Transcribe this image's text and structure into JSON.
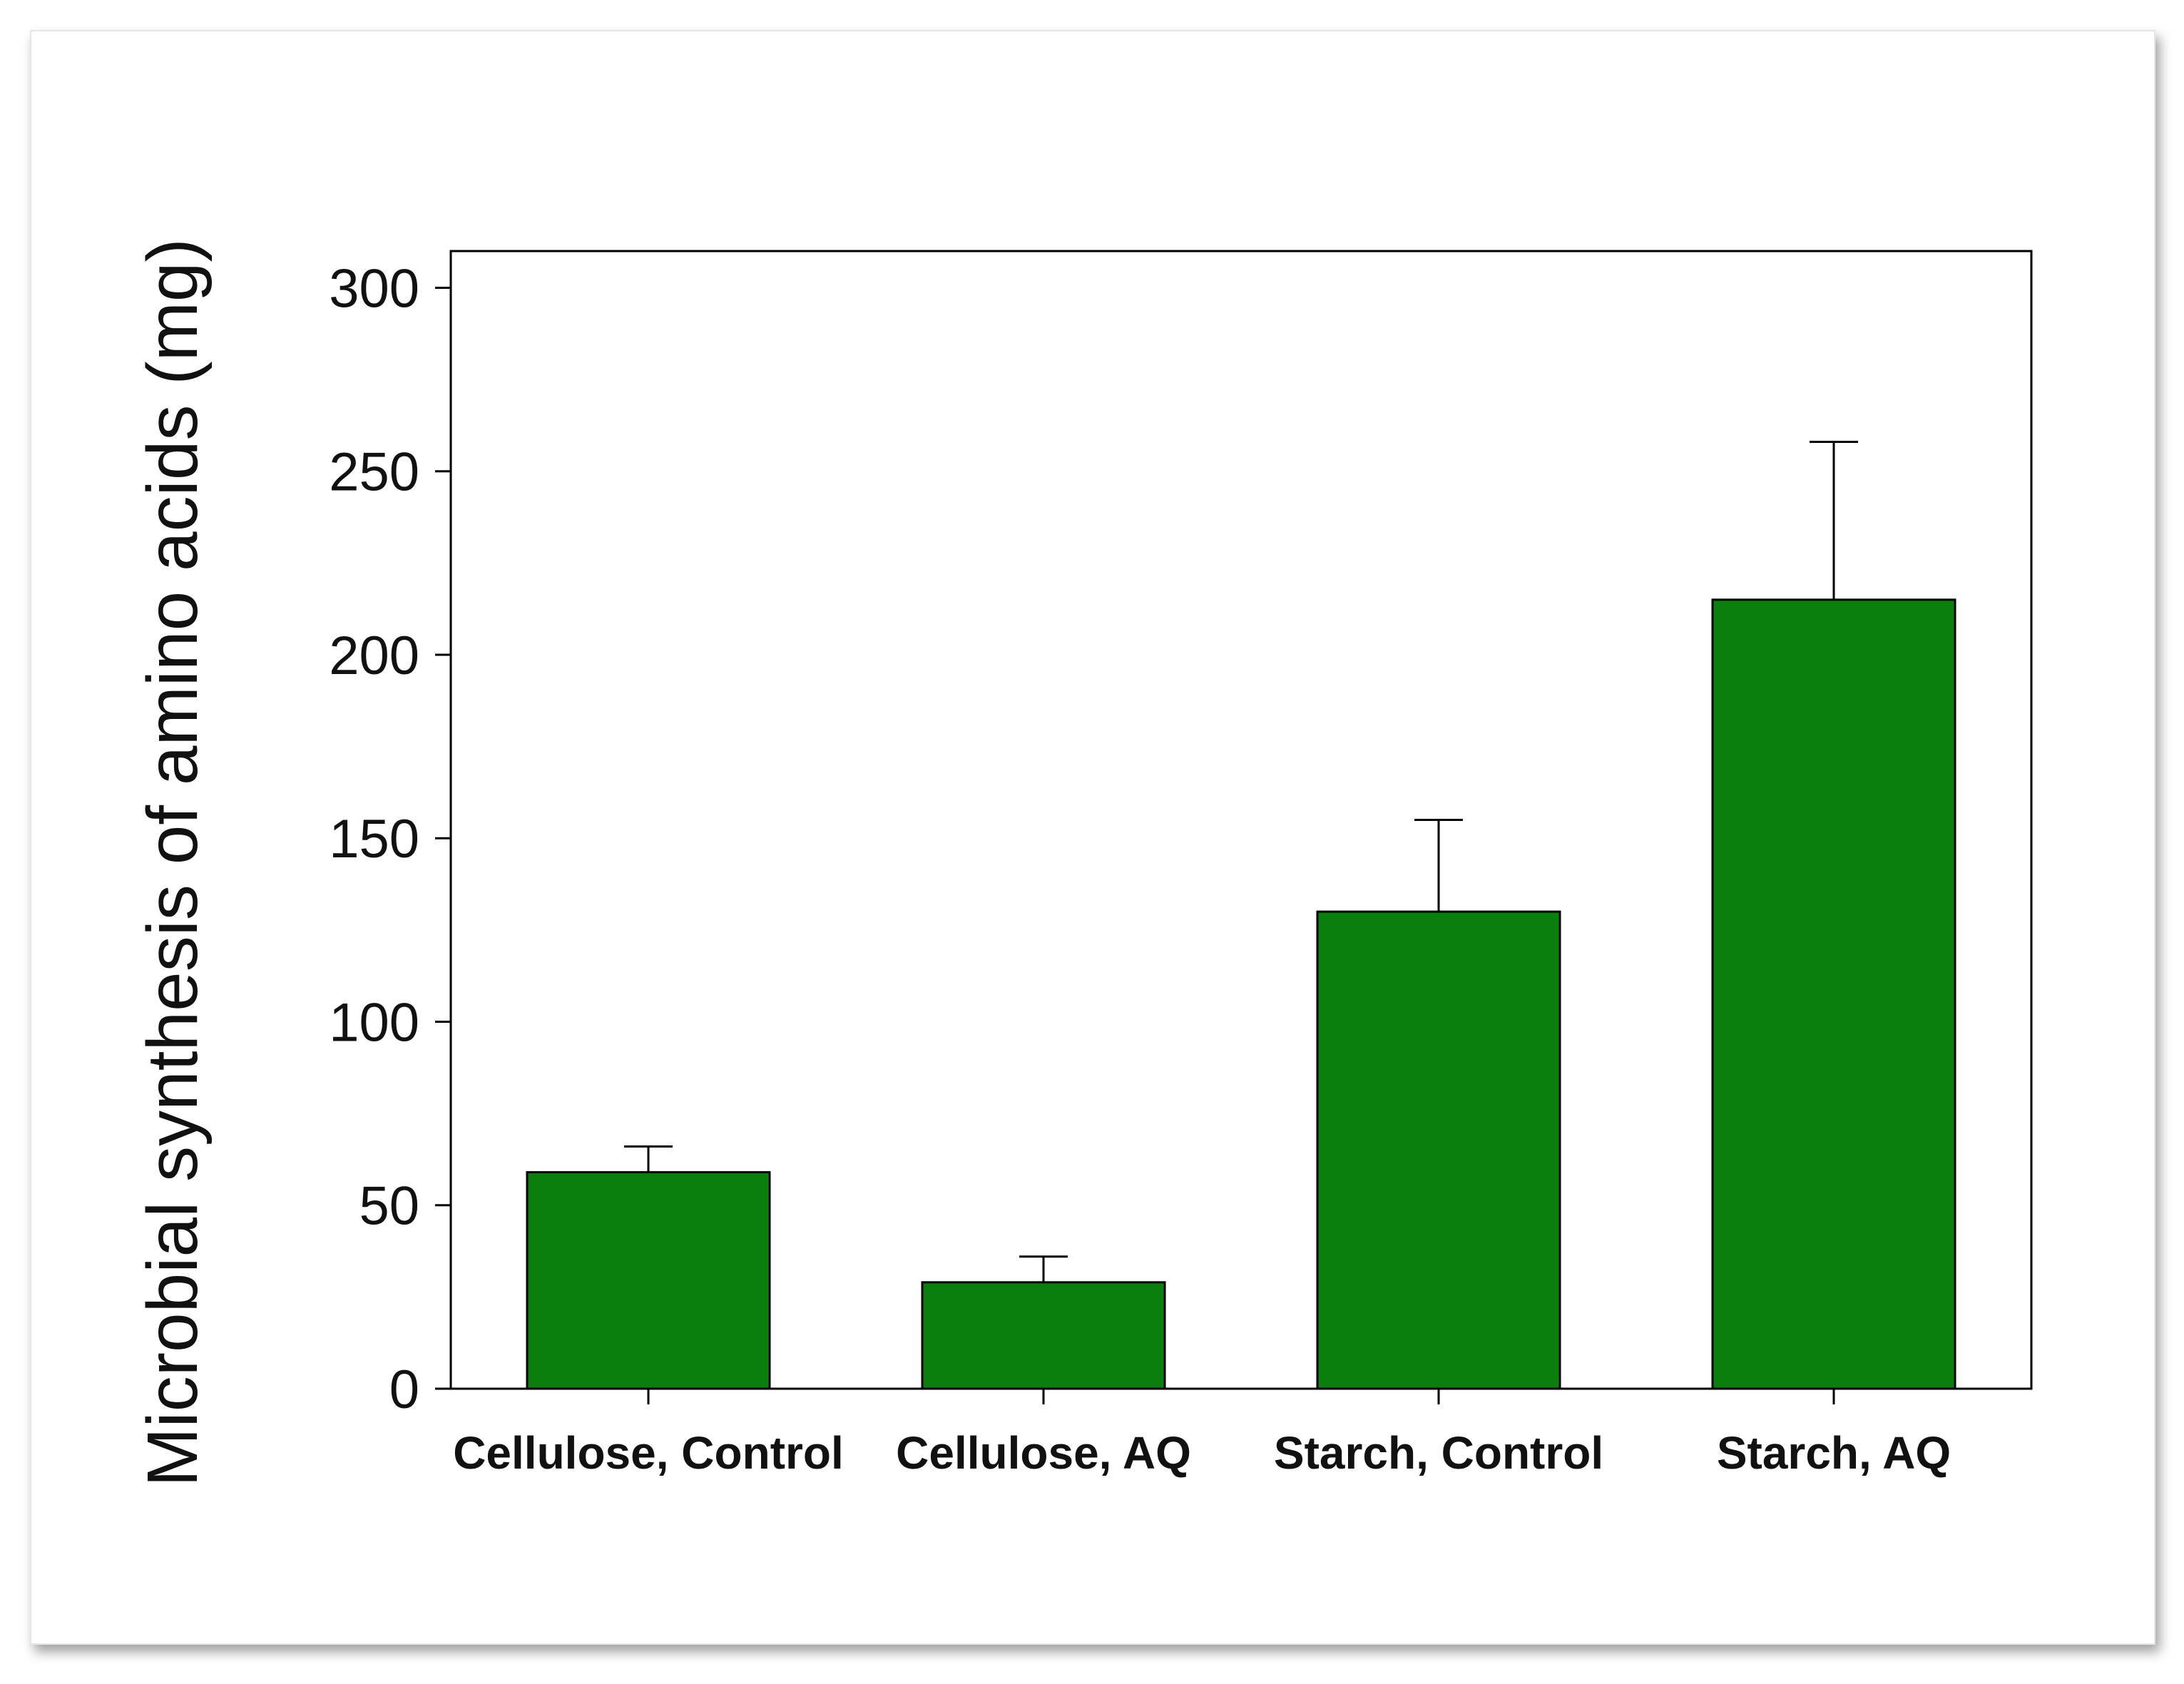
{
  "chart_data": {
    "type": "bar",
    "title": "",
    "xlabel": "",
    "ylabel": "Microbial synthesis of amino acids (mg)",
    "categories": [
      "Cellulose, Control",
      "Cellulose, AQ",
      "Starch, Control",
      "Starch, AQ"
    ],
    "values": [
      59,
      29,
      130,
      215
    ],
    "error_upper": [
      66,
      36,
      155,
      258
    ],
    "ylim": [
      0,
      310
    ],
    "yticks": [
      0,
      50,
      100,
      150,
      200,
      250,
      300
    ],
    "ytick_labels": [
      "0",
      "50",
      "100",
      "150",
      "200",
      "250",
      "300"
    ],
    "grid": false,
    "legend": "none",
    "colors": {
      "bar_fill": "#0b7f0b",
      "bar_edge": "#000000",
      "axis": "#000000",
      "text": "#111111"
    }
  }
}
